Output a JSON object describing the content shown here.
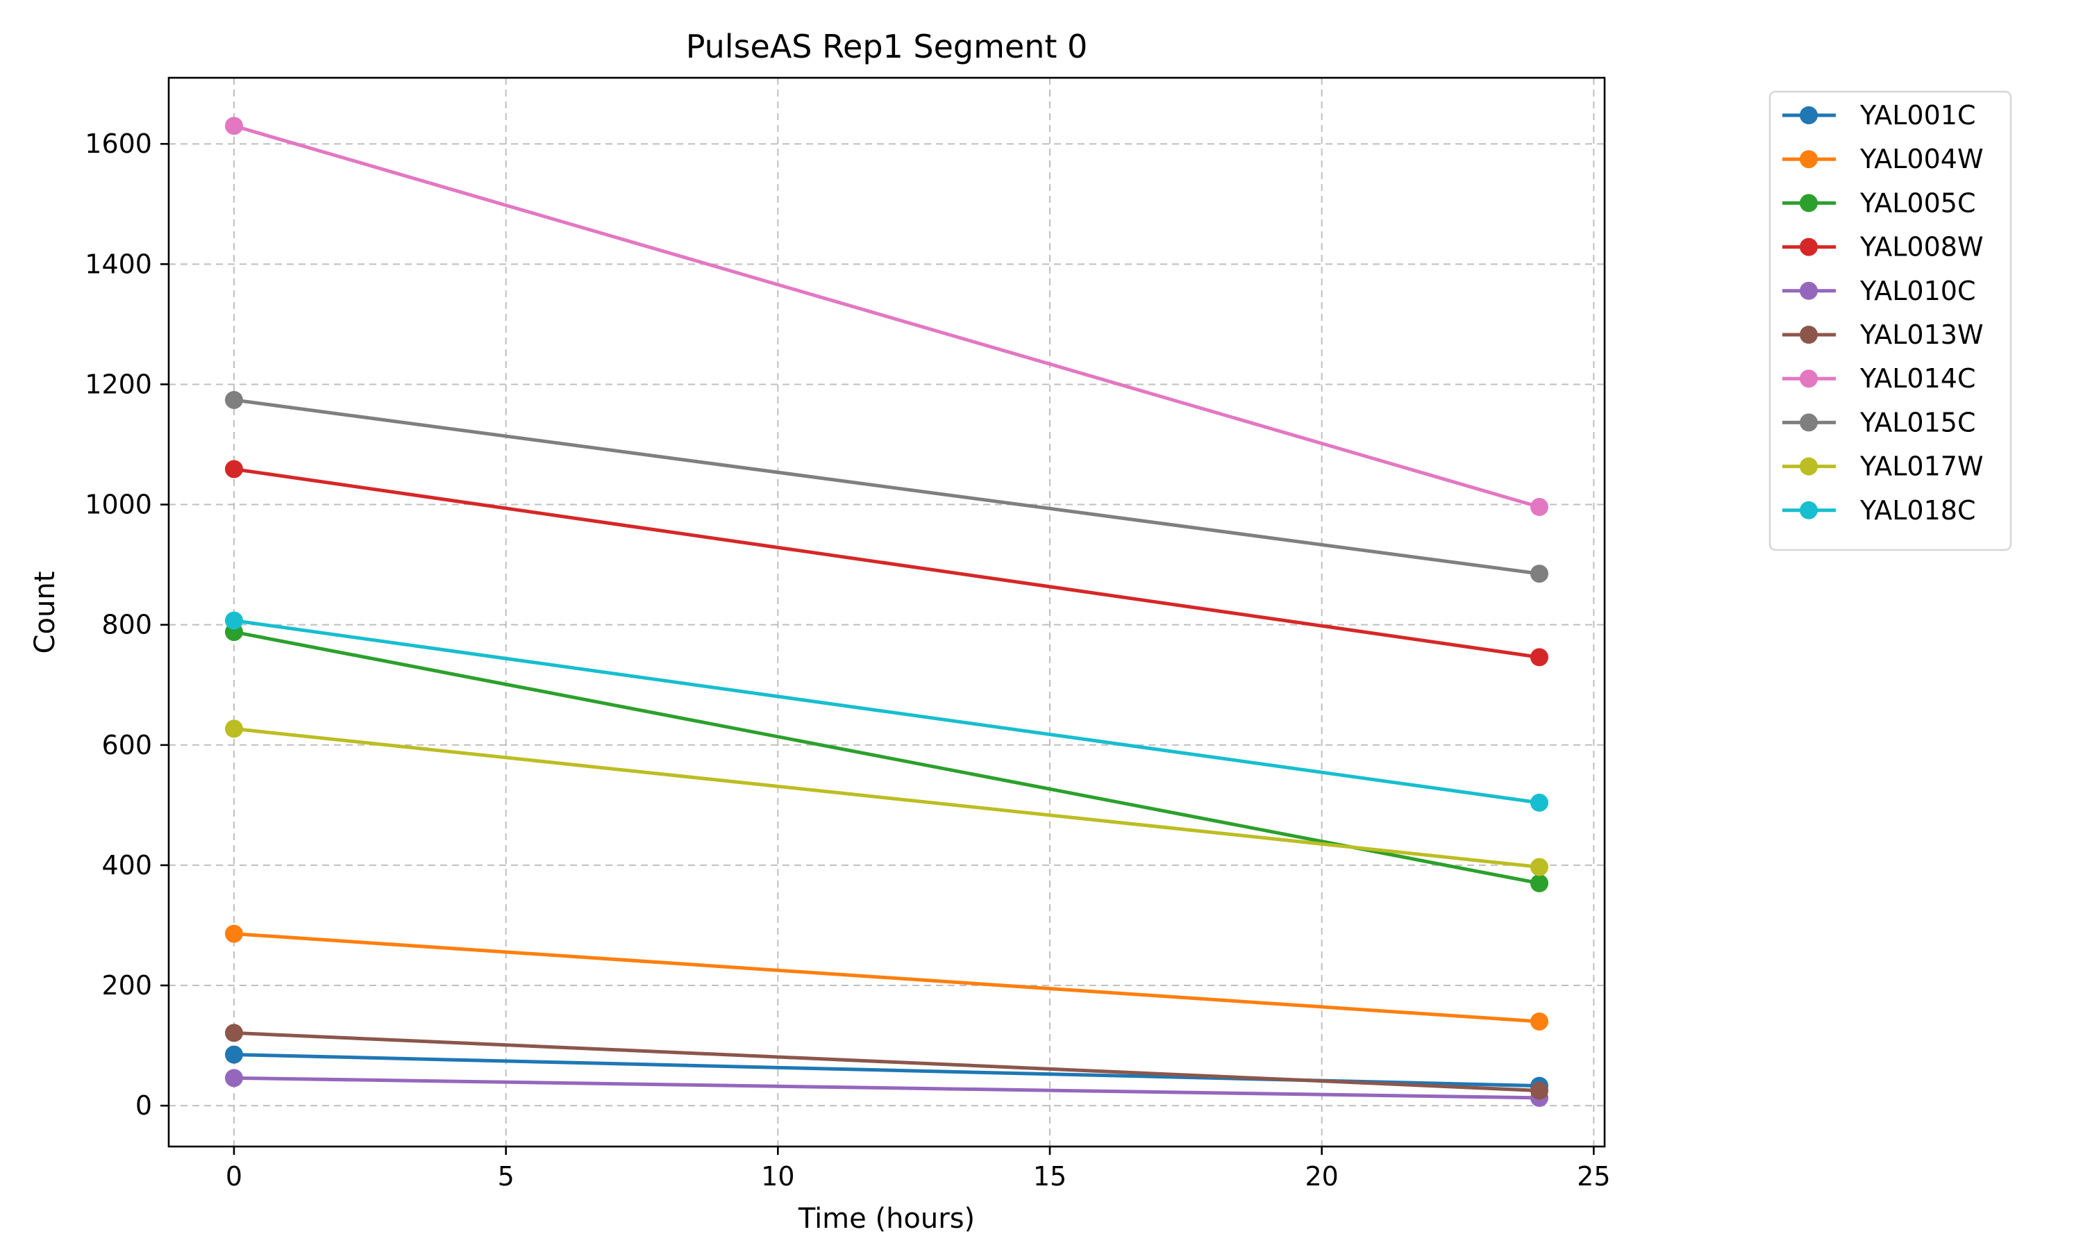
{
  "chart_data": {
    "type": "line",
    "title": "PulseAS Rep1 Segment 0",
    "xlabel": "Time (hours)",
    "ylabel": "Count",
    "xlim": [
      -1.2,
      25.2
    ],
    "ylim": [
      -68,
      1710
    ],
    "xticks": [
      0,
      5,
      10,
      15,
      20,
      25
    ],
    "yticks": [
      0,
      200,
      400,
      600,
      800,
      1000,
      1200,
      1400,
      1600
    ],
    "grid": true,
    "legend_position": "outside-top-right",
    "x": [
      0,
      24
    ],
    "series": [
      {
        "name": "YAL001C",
        "color": "#1f77b4",
        "values": [
          85,
          33
        ]
      },
      {
        "name": "YAL004W",
        "color": "#ff7f0e",
        "values": [
          286,
          140
        ]
      },
      {
        "name": "YAL005C",
        "color": "#2ca02c",
        "values": [
          788,
          370
        ]
      },
      {
        "name": "YAL008W",
        "color": "#d62728",
        "values": [
          1059,
          746
        ]
      },
      {
        "name": "YAL010C",
        "color": "#9467bd",
        "values": [
          46,
          13
        ]
      },
      {
        "name": "YAL013W",
        "color": "#8c564b",
        "values": [
          121,
          25
        ]
      },
      {
        "name": "YAL014C",
        "color": "#e377c2",
        "values": [
          1630,
          996
        ]
      },
      {
        "name": "YAL015C",
        "color": "#7f7f7f",
        "values": [
          1174,
          885
        ]
      },
      {
        "name": "YAL017W",
        "color": "#bcbd22",
        "values": [
          627,
          397
        ]
      },
      {
        "name": "YAL018C",
        "color": "#17becf",
        "values": [
          807,
          504
        ]
      }
    ]
  }
}
